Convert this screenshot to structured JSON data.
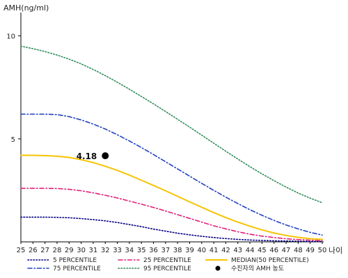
{
  "chart_data": {
    "type": "line",
    "ylabel": "AMH(ng/ml)",
    "xlabel": "나이",
    "xlim": [
      25,
      50
    ],
    "ylim": [
      0,
      11
    ],
    "yticks": [
      5,
      10
    ],
    "x": [
      25,
      26,
      27,
      28,
      29,
      30,
      31,
      32,
      33,
      34,
      35,
      36,
      37,
      38,
      39,
      40,
      41,
      42,
      43,
      44,
      45,
      46,
      47,
      48,
      49,
      50
    ],
    "series": [
      {
        "name": "5 PERCENTILE",
        "color": "#000080",
        "dash": "dotted",
        "values": [
          1.2,
          1.2,
          1.2,
          1.19,
          1.17,
          1.13,
          1.08,
          1.02,
          0.94,
          0.84,
          0.74,
          0.62,
          0.52,
          0.42,
          0.34,
          0.27,
          0.21,
          0.16,
          0.12,
          0.09,
          0.07,
          0.05,
          0.04,
          0.03,
          0.02,
          0.02
        ]
      },
      {
        "name": "25 PERCENTILE",
        "color": "#e0207a",
        "dash": "dashdot",
        "values": [
          2.6,
          2.6,
          2.6,
          2.59,
          2.55,
          2.48,
          2.38,
          2.26,
          2.13,
          1.98,
          1.83,
          1.67,
          1.5,
          1.32,
          1.14,
          0.96,
          0.78,
          0.63,
          0.49,
          0.37,
          0.28,
          0.21,
          0.15,
          0.11,
          0.08,
          0.06
        ]
      },
      {
        "name": "MEDIAN(50 PERCENTILE)",
        "color": "#f5c400",
        "dash": "solid",
        "values": [
          4.2,
          4.2,
          4.19,
          4.16,
          4.1,
          3.99,
          3.85,
          3.67,
          3.47,
          3.24,
          2.99,
          2.74,
          2.48,
          2.21,
          1.94,
          1.68,
          1.42,
          1.18,
          0.96,
          0.76,
          0.58,
          0.43,
          0.31,
          0.22,
          0.15,
          0.12
        ]
      },
      {
        "name": "75 PERCENTILE",
        "color": "#2040c0",
        "dash": "dashdot",
        "values": [
          6.2,
          6.2,
          6.2,
          6.18,
          6.08,
          5.92,
          5.72,
          5.48,
          5.2,
          4.9,
          4.58,
          4.24,
          3.89,
          3.54,
          3.19,
          2.84,
          2.5,
          2.17,
          1.86,
          1.56,
          1.29,
          1.04,
          0.82,
          0.63,
          0.46,
          0.33
        ]
      },
      {
        "name": "95 PERCENTILE",
        "color": "#2e8b57",
        "dash": "dotted",
        "values": [
          9.5,
          9.38,
          9.24,
          9.07,
          8.87,
          8.64,
          8.37,
          8.07,
          7.75,
          7.41,
          7.06,
          6.7,
          6.33,
          5.95,
          5.57,
          5.18,
          4.79,
          4.4,
          4.02,
          3.65,
          3.3,
          2.97,
          2.66,
          2.37,
          2.12,
          1.9
        ]
      }
    ],
    "point": {
      "name": "수진자의 AMH 농도",
      "x": 32,
      "y": 4.18,
      "label": "4.18",
      "color": "#000000"
    },
    "legend_placement": "bottom"
  }
}
